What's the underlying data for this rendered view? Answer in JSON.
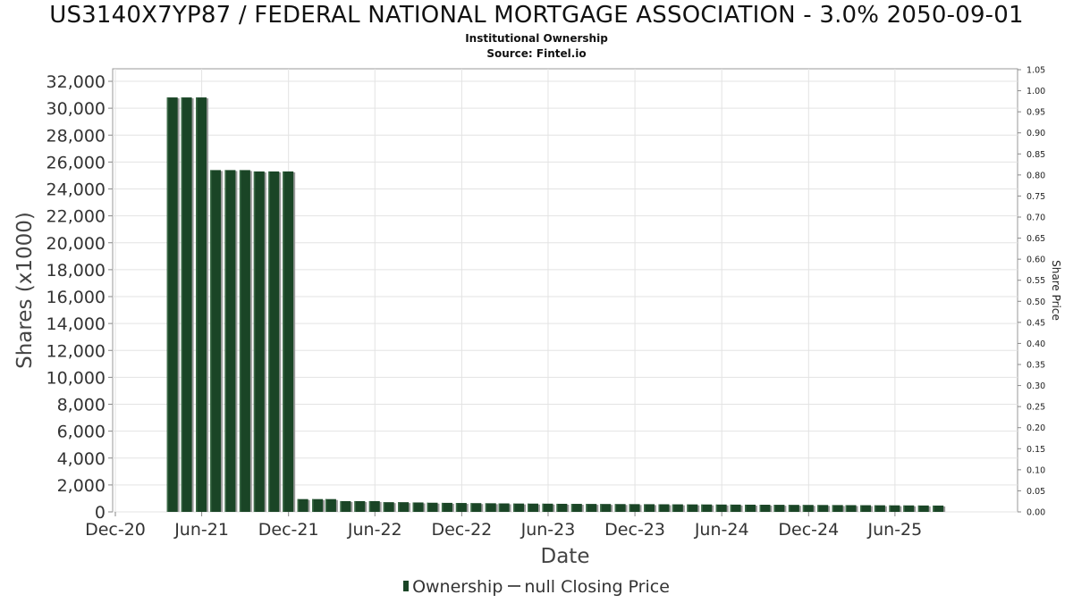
{
  "chart_data": {
    "type": "bar",
    "title": "US3140X7YP87 / FEDERAL NATIONAL MORTGAGE ASSOCIATION - 3.0% 2050-09-01",
    "subtitle": "Institutional Ownership",
    "source": "Source: Fintel.io",
    "xlabel": "Date",
    "ylabel": "Shares (x1000)",
    "y2label": "Share Price",
    "ylim": [
      0,
      32000
    ],
    "y2lim": [
      0,
      1.05
    ],
    "xlim": [
      "2020-12-01",
      "2025-12-01"
    ],
    "grid": true,
    "legend_position": "bottom",
    "y_ticks": [
      "0",
      "2,000",
      "4,000",
      "6,000",
      "8,000",
      "10,000",
      "12,000",
      "14,000",
      "16,000",
      "18,000",
      "20,000",
      "22,000",
      "24,000",
      "26,000",
      "28,000",
      "30,000",
      "32,000"
    ],
    "y2_ticks": [
      "0.00",
      "0.05",
      "0.10",
      "0.15",
      "0.20",
      "0.25",
      "0.30",
      "0.35",
      "0.40",
      "0.45",
      "0.50",
      "0.55",
      "0.60",
      "0.65",
      "0.70",
      "0.75",
      "0.80",
      "0.85",
      "0.90",
      "0.95",
      "1.00",
      "1.05"
    ],
    "x_ticks": [
      {
        "label": "Dec-20",
        "date": "2020-12-01"
      },
      {
        "label": "Jun-21",
        "date": "2021-06-01"
      },
      {
        "label": "Dec-21",
        "date": "2021-12-01"
      },
      {
        "label": "Jun-22",
        "date": "2022-06-01"
      },
      {
        "label": "Dec-22",
        "date": "2022-12-01"
      },
      {
        "label": "Jun-23",
        "date": "2023-06-01"
      },
      {
        "label": "Dec-23",
        "date": "2023-12-01"
      },
      {
        "label": "Jun-24",
        "date": "2024-06-01"
      },
      {
        "label": "Dec-24",
        "date": "2024-12-01"
      },
      {
        "label": "Jun-25",
        "date": "2025-06-01"
      }
    ],
    "series": [
      {
        "name": "Ownership",
        "color": "#1a4526",
        "points": [
          {
            "x": "2021-03-31",
            "y": 30800
          },
          {
            "x": "2021-04-30",
            "y": 30800
          },
          {
            "x": "2021-05-31",
            "y": 30800
          },
          {
            "x": "2021-06-30",
            "y": 25400
          },
          {
            "x": "2021-07-31",
            "y": 25400
          },
          {
            "x": "2021-08-31",
            "y": 25400
          },
          {
            "x": "2021-09-30",
            "y": 25300
          },
          {
            "x": "2021-10-31",
            "y": 25300
          },
          {
            "x": "2021-11-30",
            "y": 25300
          },
          {
            "x": "2021-12-31",
            "y": 950
          },
          {
            "x": "2022-01-31",
            "y": 950
          },
          {
            "x": "2022-02-28",
            "y": 950
          },
          {
            "x": "2022-03-31",
            "y": 800
          },
          {
            "x": "2022-04-30",
            "y": 800
          },
          {
            "x": "2022-05-31",
            "y": 800
          },
          {
            "x": "2022-06-30",
            "y": 720
          },
          {
            "x": "2022-07-31",
            "y": 720
          },
          {
            "x": "2022-08-31",
            "y": 700
          },
          {
            "x": "2022-09-30",
            "y": 680
          },
          {
            "x": "2022-10-31",
            "y": 670
          },
          {
            "x": "2022-11-30",
            "y": 660
          },
          {
            "x": "2022-12-31",
            "y": 650
          },
          {
            "x": "2023-01-31",
            "y": 640
          },
          {
            "x": "2023-02-28",
            "y": 630
          },
          {
            "x": "2023-03-31",
            "y": 620
          },
          {
            "x": "2023-04-30",
            "y": 615
          },
          {
            "x": "2023-05-31",
            "y": 610
          },
          {
            "x": "2023-06-30",
            "y": 600
          },
          {
            "x": "2023-07-31",
            "y": 595
          },
          {
            "x": "2023-08-31",
            "y": 590
          },
          {
            "x": "2023-09-30",
            "y": 585
          },
          {
            "x": "2023-10-31",
            "y": 580
          },
          {
            "x": "2023-11-30",
            "y": 575
          },
          {
            "x": "2023-12-31",
            "y": 570
          },
          {
            "x": "2024-01-31",
            "y": 565
          },
          {
            "x": "2024-02-29",
            "y": 560
          },
          {
            "x": "2024-03-31",
            "y": 555
          },
          {
            "x": "2024-04-30",
            "y": 550
          },
          {
            "x": "2024-05-31",
            "y": 545
          },
          {
            "x": "2024-06-30",
            "y": 540
          },
          {
            "x": "2024-07-31",
            "y": 535
          },
          {
            "x": "2024-08-31",
            "y": 530
          },
          {
            "x": "2024-09-30",
            "y": 525
          },
          {
            "x": "2024-10-31",
            "y": 520
          },
          {
            "x": "2024-11-30",
            "y": 515
          },
          {
            "x": "2024-12-31",
            "y": 510
          },
          {
            "x": "2025-01-31",
            "y": 505
          },
          {
            "x": "2025-02-28",
            "y": 500
          },
          {
            "x": "2025-03-31",
            "y": 495
          },
          {
            "x": "2025-04-30",
            "y": 490
          },
          {
            "x": "2025-05-31",
            "y": 485
          },
          {
            "x": "2025-06-30",
            "y": 480
          },
          {
            "x": "2025-07-31",
            "y": 475
          },
          {
            "x": "2025-08-31",
            "y": 470
          }
        ]
      },
      {
        "name": "null Closing Price",
        "color": "#555555",
        "points": []
      }
    ]
  },
  "legend": {
    "ownership_label": "Ownership",
    "price_label": "null Closing Price"
  }
}
